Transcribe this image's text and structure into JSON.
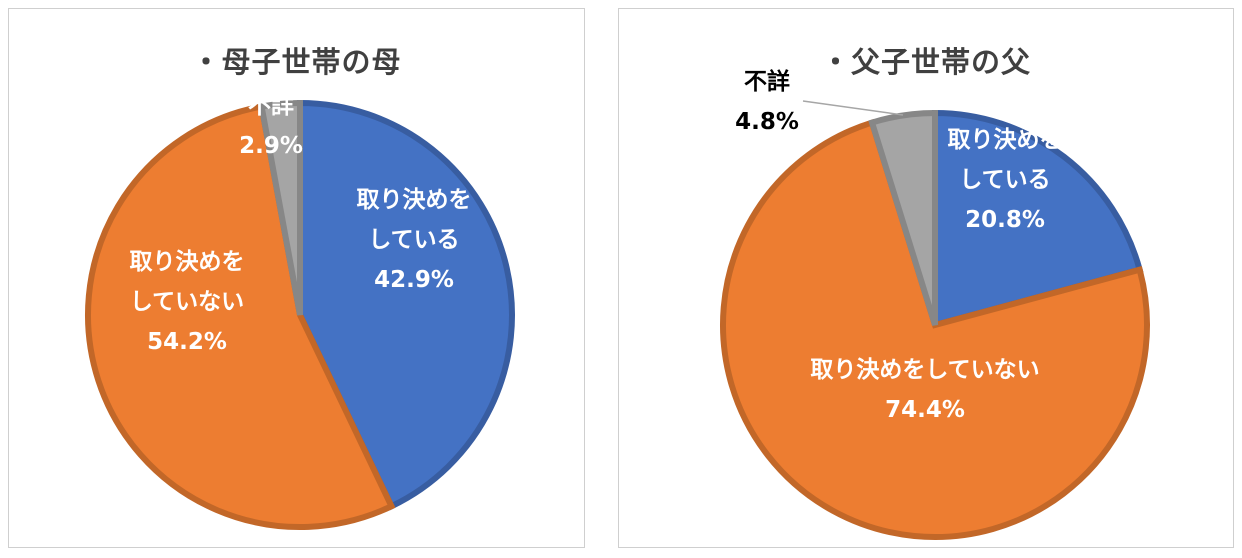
{
  "chart_data": [
    {
      "type": "pie",
      "title": "・母子世帯の母",
      "slices": [
        {
          "label": "取り決めをしている",
          "label_lines": [
            "取り決めを",
            "している"
          ],
          "value_label": "42.9%",
          "value": 42.9,
          "color": "#4472C4",
          "label_color": "#ffffff"
        },
        {
          "label": "取り決めをしていない",
          "label_lines": [
            "取り決めを",
            "していない"
          ],
          "value_label": "54.2%",
          "value": 54.2,
          "color": "#ED7D31",
          "label_color": "#ffffff"
        },
        {
          "label": "不詳",
          "label_lines": [
            "不詳"
          ],
          "value_label": "2.9%",
          "value": 2.9,
          "color": "#A5A5A5",
          "label_color": "#ffffff"
        }
      ]
    },
    {
      "type": "pie",
      "title": "・父子世帯の父",
      "slices": [
        {
          "label": "取り決めをしている",
          "label_lines": [
            "取り決めを",
            "している"
          ],
          "value_label": "20.8%",
          "value": 20.8,
          "color": "#4472C4",
          "label_color": "#ffffff"
        },
        {
          "label": "取り決めをしていない",
          "label_lines": [
            "取り決めをしていない"
          ],
          "value_label": "74.4%",
          "value": 74.4,
          "color": "#ED7D31",
          "label_color": "#ffffff"
        },
        {
          "label": "不詳",
          "label_lines": [
            "不詳"
          ],
          "value_label": "4.8%",
          "value": 4.8,
          "color": "#A5A5A5",
          "label_color": "#000000"
        }
      ]
    }
  ]
}
